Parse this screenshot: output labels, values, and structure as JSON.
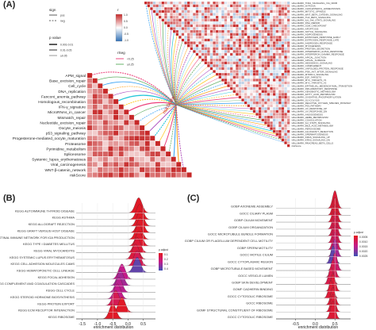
{
  "panel_a": {
    "letter": "(A)",
    "legend": {
      "sign_title": "sign",
      "sign_items": [
        "pos",
        "neg"
      ],
      "pvalue_title": "p value",
      "pvalue_items": [
        "0.001-0.01",
        "0.01-0.05",
        "≥0.05"
      ],
      "r_title": "r",
      "r_ticks": [
        "1.0",
        "0.5",
        "0.0",
        "-0.5",
        "-1.0"
      ],
      "rseg_title": "rSeg",
      "rseg_items": [
        "<0.25",
        "≥0.25"
      ]
    },
    "center_label": "riskScore",
    "left_labels": [
      "APM_signal",
      "Base_excision_repair",
      "Cell_cycle",
      "DNA_replication",
      "Fanconi_anemia_pathway",
      "Homologous_recombination",
      "IFN-γ_signature",
      "MicroRNAs_in_cancer",
      "Mismatch_repair",
      "Nucleotide_excision_repair",
      "Oocyte_meiosis",
      "p53_signaling_pathway",
      "Progesterone-mediated_oocyte_maturation",
      "Proteasome",
      "Pyrimidine_metabolism",
      "Spliceosome",
      "Systemic_lupus_erythematosus",
      "Viral_carcinogenesis",
      "WNT-β-catenin_network",
      "riskScore"
    ],
    "right_labels": [
      "HALLMARK_TNFA_SIGNALING_VIA_NFKB",
      "HALLMARK_HYPOXIA",
      "HALLMARK_CHOLESTEROL_HOMEOSTASIS",
      "HALLMARK_MITOTIC_SPINDLE",
      "HALLMARK_WNT_BETA_CATENIN_SIGNALING",
      "HALLMARK_TGF_BETA_SIGNALING",
      "HALLMARK_IL6_JAK_STAT3_SIGNALING",
      "HALLMARK_DNA_REPAIR",
      "HALLMARK_G2M_CHECKPOINT",
      "HALLMARK_APOPTOSIS",
      "HALLMARK_NOTCH_SIGNALING",
      "HALLMARK_ADIPOGENESIS",
      "HALLMARK_ESTROGEN_RESPONSE_EARLY",
      "HALLMARK_ESTROGEN_RESPONSE_LATE",
      "HALLMARK_ANDROGEN_RESPONSE",
      "HALLMARK_MYOGENESIS",
      "HALLMARK_PROTEIN_SECRETION",
      "HALLMARK_INTERFERON_ALPHA_RESPONSE",
      "HALLMARK_INTERFERON_GAMMA_RESPONSE",
      "HALLMARK_APICAL_JUNCTION",
      "HALLMARK_APICAL_SURFACE",
      "HALLMARK_HEDGEHOG_SIGNALING",
      "HALLMARK_COMPLEMENT",
      "HALLMARK_UNFOLDED_PROTEIN_RESPONSE",
      "HALLMARK_PI3K_AKT_MTOR_SIGNALING",
      "HALLMARK_MTORC1_SIGNALING",
      "HALLMARK_E2F_TARGETS",
      "HALLMARK_MYC_TARGETS_V1",
      "HALLMARK_MYC_TARGETS_V2",
      "HALLMARK_EPITHELIAL_MESENCHYMAL_TRANSITION",
      "HALLMARK_INFLAMMATORY_RESPONSE",
      "HALLMARK_XENOBIOTIC_METABOLISM",
      "HALLMARK_FATTY_ACID_METABOLISM",
      "HALLMARK_OXIDATIVE_PHOSPHORYLATION",
      "HALLMARK_GLYCOLYSIS",
      "HALLMARK_REACTIVE_OXYGEN_SPECIES_PATHWAY",
      "HALLMARK_P53_PATHWAY",
      "HALLMARK_UV_RESPONSE_UP",
      "HALLMARK_UV_RESPONSE_DN",
      "HALLMARK_ANGIOGENESIS",
      "HALLMARK_HEME_METABOLISM",
      "HALLMARK_COAGULATION",
      "HALLMARK_IL2_STAT5_SIGNALING",
      "HALLMARK_BILE_ACID_METABOLISM",
      "HALLMARK_PEROXISOME",
      "HALLMARK_ALLOGRAFT_REJECTION",
      "HALLMARK_SPERMATOGENESIS",
      "HALLMARK_KRAS_SIGNALING_UP",
      "HALLMARK_KRAS_SIGNALING_DN",
      "HALLMARK_PANCREAS_BETA_CELLS",
      "riskScore"
    ]
  },
  "panel_b": {
    "letter": "(B)",
    "chart_data": {
      "type": "ridgeline",
      "xlabel": "enrichment distribution",
      "x_ticks": [
        -1.5,
        -1.0,
        -0.5,
        0.0,
        0.5
      ],
      "xlim": [
        -1.7,
        0.9
      ],
      "legend_title": "p.adjust",
      "legend_ticks": [
        "0.1",
        "0.2",
        "0.3",
        "0.4"
      ],
      "categories": [
        "KEGG AUTOIMMUNE THYROID DISEASE",
        "KEGG ASTHMA",
        "KEGG ALLOGRAFT REJECTION",
        "KEGG GRAFT VERSUS HOST DISEASE",
        "KEGG INTESTINAL IMMUNE NETWORK FOR IGA PRODUCTION",
        "KEGG TYPE I DIABETES MELLITUS",
        "KEGG VIRAL MYOCARDITIS",
        "KEGG SYSTEMIC LUPUS ERYTHEMATOSUS",
        "KEGG CELL ADHESION MOLECULES CAMS",
        "KEGG HEMATOPOIETIC CELL LINEAGE",
        "KEGG FOCAL ADHESION",
        "KEGG COMPLEMENT AND COAGULATION CASCADES",
        "KEGG CELL CYCLE",
        "KEGG STEROID HORMONE BIOSYNTHESIS",
        "KEGG PROTEIN EXPORT",
        "KEGG ECM RECEPTOR INTERACTION",
        "KEGG RIBOSOME"
      ],
      "peaks": [
        0.35,
        0.38,
        0.4,
        0.4,
        0.35,
        0.36,
        0.3,
        0.25,
        0.3,
        0.3,
        -0.2,
        -0.25,
        -0.3,
        -0.35,
        -0.4,
        -0.2,
        -0.5
      ],
      "p_adjust": [
        0.02,
        0.02,
        0.02,
        0.02,
        0.02,
        0.03,
        0.05,
        0.06,
        0.1,
        0.35,
        0.2,
        0.25,
        0.22,
        0.2,
        0.1,
        0.02,
        0.02
      ]
    }
  },
  "panel_c": {
    "letter": "(C)",
    "chart_data": {
      "type": "ridgeline",
      "xlabel": "enrichment distribution",
      "x_ticks": [
        -0.5,
        0.0,
        0.5
      ],
      "xlim": [
        -1.0,
        0.9
      ],
      "legend_title": "p.adjust",
      "legend_ticks": [
        "0.0005",
        "0.0010",
        "0.0015",
        "0.0020",
        "0.0025"
      ],
      "categories": [
        "GOBP AXONEME ASSEMBLY",
        "GOCC CILIARY PLASM",
        "GOBP CILIUM MOVEMENT",
        "GOBP CILIUM ORGANIZATION",
        "GOCC MICROTUBULE BUNDLE FORMATION",
        "GOBP CILIUM OR FLAGELLUM DEPENDENT CELL MOTILITY",
        "GOBP SPERM MOTILITY",
        "GOCC MOTILE CILIUM",
        "GOCC CYTOPLASMIC REGION",
        "GOBP MICROTUBULE BASED MOVEMENT",
        "GOCC VESICLE LUMEN",
        "GOBP SKIN DEVELOPMENT",
        "GOMF CADHERIN BINDING",
        "GOCC CYTOSOLIC RIBOSOME",
        "GOCC RIBOSOME",
        "GOMF STRUCTURAL CONSTITUENT OF RIBOSOME",
        "GOCC CYTOSOLIC RIBOSOME"
      ],
      "peaks": [
        0.5,
        0.5,
        0.5,
        0.5,
        0.5,
        0.5,
        0.5,
        0.5,
        0.45,
        0.5,
        0.45,
        0.4,
        0.45,
        0.4,
        0.45,
        0.45,
        0.45
      ],
      "p_adjust": [
        0.0003,
        0.0003,
        0.0003,
        0.0005,
        0.0005,
        0.0006,
        0.0008,
        0.0015,
        0.0022,
        0.0009,
        0.0006,
        0.0005,
        0.0003,
        0.0003,
        0.0003,
        0.0003,
        0.0003
      ]
    }
  }
}
